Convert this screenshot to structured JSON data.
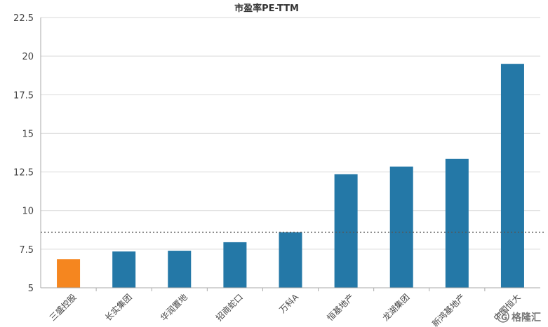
{
  "chart_data": {
    "type": "bar",
    "title": "市盈率PE-TTM",
    "categories": [
      "三盛控股",
      "长实集团",
      "华润置地",
      "招商蛇口",
      "万科A",
      "恒基地产",
      "龙湖集团",
      "新鸿基地产",
      "中国恒大"
    ],
    "values": [
      6.85,
      7.35,
      7.4,
      7.95,
      8.6,
      12.35,
      12.85,
      13.35,
      19.5
    ],
    "highlight_index": 0,
    "colors": {
      "default": "#2478a7",
      "highlight": "#f5861f",
      "reference_line": "#555555",
      "grid": "#d9d9d9"
    },
    "ylim": [
      5,
      22.5
    ],
    "yticks": [
      "5",
      "7.5",
      "10",
      "12.5",
      "15",
      "17.5",
      "20",
      "22.5"
    ],
    "reference_line": 8.6,
    "grid": true,
    "xlabel": "",
    "ylabel": ""
  },
  "watermark": {
    "text": "格隆汇",
    "icon": "gelonghui-logo-icon"
  }
}
